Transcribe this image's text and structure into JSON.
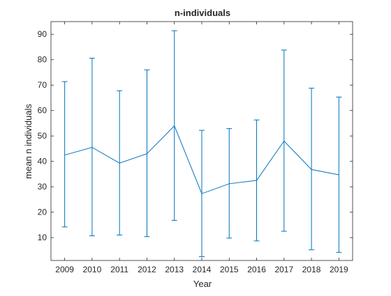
{
  "chart_data": {
    "type": "line",
    "title": "n-individuals",
    "xlabel": "Year",
    "ylabel": "mean n individuals",
    "x": [
      2009,
      2010,
      2011,
      2012,
      2013,
      2014,
      2015,
      2016,
      2017,
      2018,
      2019
    ],
    "xlim": [
      2008.5,
      2019.5
    ],
    "ylim": [
      1,
      95
    ],
    "yticks": [
      10,
      20,
      30,
      40,
      50,
      60,
      70,
      80,
      90
    ],
    "series": [
      {
        "values": [
          42.5,
          45.5,
          39.3,
          43.0,
          54.0,
          27.3,
          31.2,
          32.5,
          48.0,
          36.8,
          34.7
        ],
        "error_lower": [
          14.2,
          10.7,
          11.0,
          10.4,
          16.8,
          2.5,
          9.8,
          8.7,
          12.5,
          5.2,
          4.2
        ],
        "error_upper": [
          71.4,
          80.6,
          67.8,
          76.0,
          91.4,
          52.2,
          52.9,
          56.3,
          83.8,
          68.8,
          65.3
        ]
      }
    ],
    "grid": false,
    "box": true,
    "color": "#0072BD"
  }
}
